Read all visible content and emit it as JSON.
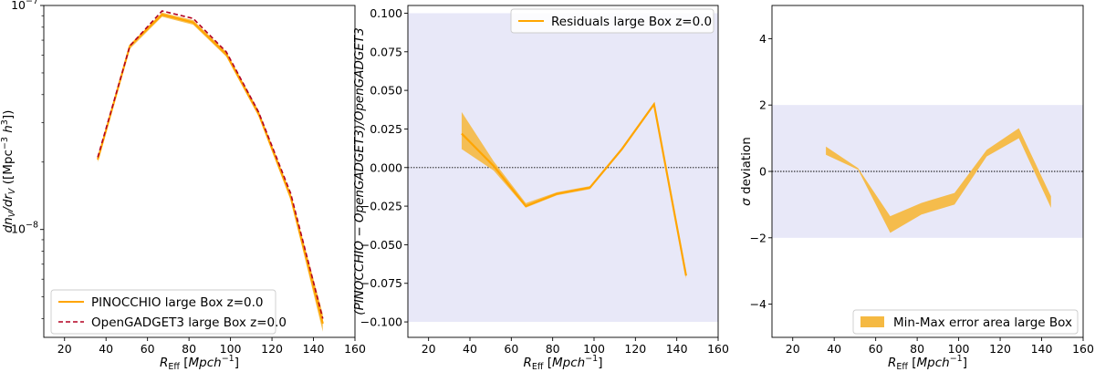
{
  "colors": {
    "orange": "#FFA500",
    "band_orange": "#F5B942",
    "dashed_red": "#B30020",
    "shade": "#E8E8F8",
    "axis": "#000000"
  },
  "chart_data": [
    {
      "type": "line",
      "yscale": "log",
      "x": [
        36,
        51.5,
        67,
        82,
        98,
        113.5,
        129,
        144.5
      ],
      "series": [
        {
          "name": "PINOCCHIO large Box z=0.0",
          "style": "solid-band",
          "values": [
            2.05e-08,
            6.6e-08,
            9.1e-08,
            8.4e-08,
            6.05e-08,
            3.3e-08,
            1.4e-08,
            3.8e-09
          ],
          "lower": [
            2e-08,
            6.4e-08,
            8.9e-08,
            8.2e-08,
            5.9e-08,
            3.2e-08,
            1.35e-08,
            3.5e-09
          ],
          "upper": [
            2.1e-08,
            6.7e-08,
            9.3e-08,
            8.6e-08,
            6.2e-08,
            3.4e-08,
            1.45e-08,
            4.2e-09
          ]
        },
        {
          "name": "OpenGADGET3 large Box z=0.0",
          "style": "dashed",
          "values": [
            2.1e-08,
            6.6e-08,
            9.45e-08,
            8.75e-08,
            6.2e-08,
            3.35e-08,
            1.45e-08,
            4e-09
          ]
        }
      ],
      "xlim": [
        10,
        160
      ],
      "ylim": [
        3.3e-09,
        1e-07
      ],
      "xticks": [
        20,
        40,
        60,
        80,
        100,
        120,
        140,
        160
      ],
      "yticks": [
        {
          "value": 1e-08,
          "label": "10⁻⁸"
        },
        {
          "value": 1e-07,
          "label": "10⁻⁷"
        }
      ],
      "xlabel": "R_Eff [Mpch⁻¹]",
      "ylabel": "dn_V/dr_V ([Mpc⁻³ h³])",
      "legend_position": "lower left"
    },
    {
      "type": "line",
      "x": [
        36,
        51.5,
        67,
        82,
        98,
        113.5,
        129,
        144.5
      ],
      "series": [
        {
          "name": "Residuals large Box z=0.0",
          "values": [
            0.022,
            0.001,
            -0.025,
            -0.017,
            -0.013,
            0.012,
            0.041,
            -0.07
          ],
          "lower": [
            0.012,
            -0.002,
            -0.026,
            -0.018,
            -0.014,
            0.011,
            0.04,
            -0.072
          ],
          "upper": [
            0.036,
            0.004,
            -0.023,
            -0.016,
            -0.012,
            0.013,
            0.042,
            -0.067
          ]
        }
      ],
      "band": [
        -0.1,
        0.1
      ],
      "hline": 0.0,
      "xlim": [
        10,
        160
      ],
      "ylim": [
        -0.11,
        0.105
      ],
      "xticks": [
        20,
        40,
        60,
        80,
        100,
        120,
        140,
        160
      ],
      "yticks": [
        -0.1,
        -0.075,
        -0.05,
        -0.025,
        0.0,
        0.025,
        0.05,
        0.075,
        0.1
      ],
      "ytick_labels": [
        "−0.100",
        "−0.075",
        "−0.050",
        "−0.025",
        "0.000",
        "0.025",
        "0.050",
        "0.075",
        "0.100"
      ],
      "xlabel": "R_Eff [Mpch⁻¹]",
      "ylabel": "(PINOCCHIO − OpenGADGET3)/OpenGADGET3",
      "legend_position": "upper right"
    },
    {
      "type": "area",
      "x": [
        36,
        51.5,
        67,
        82,
        98,
        113.5,
        129,
        144.5
      ],
      "series": [
        {
          "name": "Min-Max error area large Box",
          "lower": [
            0.5,
            0.05,
            -1.85,
            -1.3,
            -1.0,
            0.45,
            1.0,
            -1.1
          ],
          "upper": [
            0.75,
            0.1,
            -1.35,
            -0.95,
            -0.65,
            0.65,
            1.3,
            -0.75
          ]
        }
      ],
      "band": [
        -2,
        2
      ],
      "hline": 0,
      "xlim": [
        10,
        160
      ],
      "ylim": [
        -5,
        5
      ],
      "xticks": [
        20,
        40,
        60,
        80,
        100,
        120,
        140,
        160
      ],
      "yticks": [
        -4,
        -2,
        0,
        2,
        4
      ],
      "ytick_labels": [
        "−4",
        "−2",
        "0",
        "2",
        "4"
      ],
      "xlabel": "R_Eff [Mpch⁻¹]",
      "ylabel": "σ deviation",
      "legend_position": "lower right"
    }
  ]
}
